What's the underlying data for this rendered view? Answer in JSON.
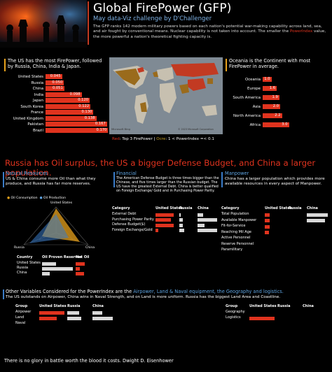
{
  "header": {
    "title": "Global FirePower (GFP)",
    "subtitle": "May data-Viz challenge by D'Challenger",
    "description_1": "The GFP ranks 142 modern military powers based on each nation's potential war-making capability across land, sea, and air fought by conventional means. Nuclear capability is not taken into account.",
    "description_2a": "The smaller the ",
    "description_2b": "PowerIndex",
    "description_2c": " value, the more powerful a nation's theoretical fighting capacity is."
  },
  "top_countries": {
    "heading": "The US has the most FirePower, followed by Russia, China, India & Japan.",
    "chart_data": {
      "type": "bar",
      "categories": [
        "United States",
        "Russia",
        "China",
        "India",
        "Japan",
        "South Korea",
        "France",
        "United Kingdom",
        "Pakistan",
        "Brazil"
      ],
      "values": [
        0.045,
        0.05,
        0.051,
        0.098,
        0.12,
        0.122,
        0.13,
        0.138,
        0.167,
        0.17
      ],
      "labels": [
        "0.045",
        "0.050",
        "0.051",
        "0.098",
        "0.120",
        "0.122",
        "0.130",
        "0.138",
        "0.167",
        "0.170"
      ]
    }
  },
  "map": {
    "legend_1": "Red",
    "legend_1_text": ": Top 3 FirePower | ",
    "legend_2": "Ocre",
    "legend_2_text": ": 1 < PowerIndex =< 0.1",
    "credit_left": "Microsoft Bing",
    "credit_right": "© 2023 Microsoft Corporation"
  },
  "continents": {
    "heading": "Oceania is the Continent with most FirePower in average.",
    "chart_data": {
      "type": "bar",
      "categories": [
        "Oceania",
        "Europe",
        "South America",
        "Asia",
        "North America",
        "Africa"
      ],
      "values": [
        1.0,
        1.6,
        1.9,
        2.0,
        2.2,
        3.0
      ],
      "labels": [
        "1.0",
        "1.6",
        "1.9",
        "2.0",
        "2.2",
        "3.0"
      ]
    }
  },
  "headline": "Russia has Oil surplus, the US a bigger Defense Budget, and China a larger population.",
  "natural": {
    "title": "Natural Resources",
    "text": "US & China consume more Oil than what they produce, and Russia has far more reserves.",
    "legend_consumption": "Oil Consumption",
    "legend_production": "Oil Production",
    "radar_labels": [
      "United States",
      "Russia",
      "China"
    ],
    "table_headers": [
      "Country",
      "Oil Proven Reserves",
      "Net Oil"
    ],
    "table_rows": [
      "United States",
      "Russia",
      "China"
    ],
    "chart_data": {
      "type": "bar",
      "series": [
        {
          "name": "Oil Proven Reserves",
          "values": [
            0.45,
            1.0,
            0.25
          ]
        },
        {
          "name": "Net Oil",
          "values": [
            0.8,
            0.35,
            0.75
          ]
        }
      ],
      "categories": [
        "United States",
        "Russia",
        "China"
      ]
    }
  },
  "financial": {
    "title": "Financial",
    "text": "The American Defense Budget is three times bigger than the Chinese, and five times larger than the Russian budget. The US have the greatest External Debt. China is better qualified on Foreign Exchange/ Gold and in Purchasing Power Parity.",
    "table_headers": [
      "Category",
      "United States",
      "Russia",
      "China"
    ],
    "table_rows": [
      "External Debt",
      "Purchasing Power Parity",
      "Defense Budget($)",
      "Foreign Exchange/Gold"
    ],
    "chart_data": {
      "type": "bar",
      "series": [
        {
          "name": "United States",
          "values": [
            1.0,
            0.85,
            1.0,
            0.15
          ]
        },
        {
          "name": "Russia",
          "values": [
            0.1,
            0.2,
            0.2,
            0.3
          ]
        },
        {
          "name": "China",
          "values": [
            0.3,
            1.0,
            0.35,
            1.0
          ]
        }
      ],
      "categories": [
        "External Debt",
        "Purchasing Power Parity",
        "Defense Budget($)",
        "Foreign Exchange/Gold"
      ]
    }
  },
  "manpower": {
    "title": "Manpower",
    "text": "China has a larger population which provides more available resources in every aspect of Manpower.",
    "table_headers": [
      "Category",
      "United States",
      "Russia",
      "China"
    ],
    "table_rows": [
      "Total Population",
      "Available Manpower",
      "Fit-for-Service",
      "Reaching Mil Age",
      "Active Personnel",
      "Reserve Personnel",
      "Paramilitary"
    ],
    "chart_data": {
      "type": "bar",
      "series": [
        {
          "name": "United States",
          "values": [
            0.25,
            0.25,
            0.25,
            0.2,
            0.0,
            0.0,
            0.0
          ]
        },
        {
          "name": "Russia",
          "values": [
            0.0,
            0.0,
            0.0,
            0.0,
            0.0,
            0.0,
            0.0
          ]
        },
        {
          "name": "China",
          "values": [
            1.0,
            0.85,
            0.0,
            0.0,
            0.0,
            0.0,
            0.0
          ]
        }
      ],
      "categories": [
        "Total Population",
        "Available Manpower",
        "Fit-for-Service",
        "Reaching Mil Age",
        "Active Personnel",
        "Reserve Personnel",
        "Paramilitary"
      ]
    }
  },
  "other": {
    "heading_a": "Other Variables Considered for the PowerIndex are the ",
    "heading_b": "Airpower, Land & Naval equipment, the Geography and logistics.",
    "text": "The US outstands on Airpower, China wins in Naval Strength, and on Land is more uniform. Russia has the biggest Land Area and Coastline.",
    "t1_headers": [
      "Group",
      "United States",
      "Russia",
      "China"
    ],
    "t1_rows": [
      "Airpower",
      "Land",
      "Naval"
    ],
    "t2_headers": [
      "Group",
      "United States",
      "Russia",
      "China"
    ],
    "t2_rows": [
      "Geography",
      "Logistics"
    ],
    "chart_data": [
      {
        "type": "bar",
        "categories": [
          "Airpower",
          "Land",
          "Naval"
        ],
        "series": [
          {
            "name": "United States",
            "values": [
              1.0,
              0.7,
              0.0
            ]
          },
          {
            "name": "Russia",
            "values": [
              0.5,
              0.6,
              0.0
            ]
          },
          {
            "name": "China",
            "values": [
              0.4,
              0.8,
              0.0
            ]
          }
        ]
      },
      {
        "type": "bar",
        "categories": [
          "Geography",
          "Logistics"
        ],
        "series": [
          {
            "name": "United States",
            "values": [
              0.0,
              1.0
            ]
          },
          {
            "name": "Russia",
            "values": [
              0.0,
              0.0
            ]
          },
          {
            "name": "China",
            "values": [
              0.0,
              0.0
            ]
          }
        ]
      }
    ]
  },
  "footer": "There is no glory in battle worth the blood it costs. Dwight D. Eisenhower",
  "colors": {
    "red": "#e0331e",
    "ocre": "#c9a227",
    "blue": "#5ea3e0",
    "grey": "#d8d8d8"
  }
}
